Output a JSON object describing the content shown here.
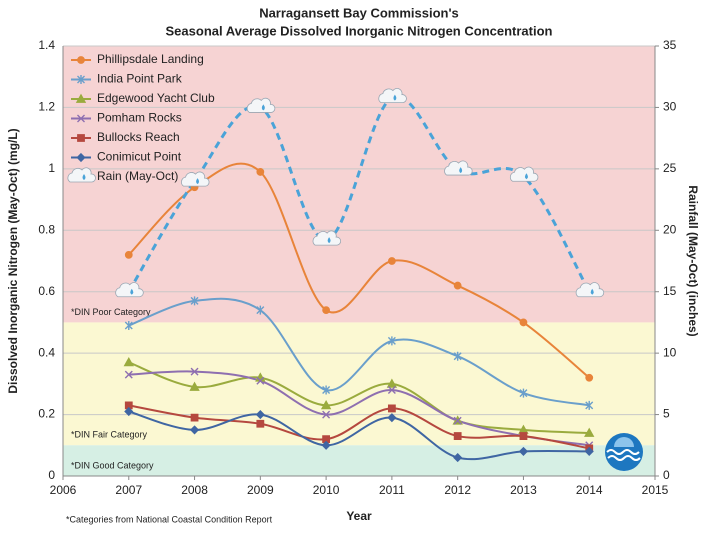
{
  "chart_data": {
    "type": "line",
    "title": "Narragansett Bay Commission's",
    "subtitle": "Seasonal Average Dissolved Inorganic Nitrogen Concentration",
    "x_label": "Year",
    "y_label": "Dissolved Inorganic Nitrogen (May-Oct) (mg/L)",
    "y2_label": "Rainfall (May-Oct) (inches)",
    "footnote": "*Categories from National Coastal Condition Report",
    "x": [
      2007,
      2008,
      2009,
      2010,
      2011,
      2012,
      2013,
      2014
    ],
    "xlim": [
      2006,
      2015
    ],
    "xticks": [
      2006,
      2007,
      2008,
      2009,
      2010,
      2011,
      2012,
      2013,
      2014,
      2015
    ],
    "ylim": [
      0,
      1.4
    ],
    "yticks": [
      0,
      0.2,
      0.4,
      0.6,
      0.8,
      1,
      1.2,
      1.4
    ],
    "y2lim": [
      0,
      35
    ],
    "y2ticks": [
      0,
      5,
      10,
      15,
      20,
      25,
      30,
      35
    ],
    "grid": true,
    "legend": "top-left",
    "smooth": true,
    "bands": [
      {
        "from": 0.5,
        "to": 1.4,
        "color": "#f6d3d3",
        "label": "*DIN Poor Category"
      },
      {
        "from": 0.1,
        "to": 0.5,
        "color": "#fbf8d2",
        "label": "*DIN Fair Category"
      },
      {
        "from": 0,
        "to": 0.1,
        "color": "#d6efe4",
        "label": "*DIN Good Category"
      }
    ],
    "series": [
      {
        "name": "Phillipsdale Landing",
        "color": "#e8843a",
        "marker": "circle",
        "values": [
          0.72,
          0.94,
          0.99,
          0.54,
          0.7,
          0.62,
          0.5,
          0.32
        ]
      },
      {
        "name": "India Point Park",
        "color": "#6a9fcb",
        "marker": "star",
        "values": [
          0.49,
          0.57,
          0.54,
          0.28,
          0.44,
          0.39,
          0.27,
          0.23
        ]
      },
      {
        "name": "Edgewood Yacht Club",
        "color": "#9aab3e",
        "marker": "triangle",
        "values": [
          0.37,
          0.29,
          0.32,
          0.23,
          0.3,
          0.18,
          0.15,
          0.14
        ]
      },
      {
        "name": "Pomham Rocks",
        "color": "#8e6fb0",
        "marker": "x",
        "values": [
          0.33,
          0.34,
          0.31,
          0.2,
          0.28,
          0.18,
          0.13,
          0.1
        ]
      },
      {
        "name": "Bullocks Reach",
        "color": "#b5483f",
        "marker": "square",
        "values": [
          0.23,
          0.19,
          0.17,
          0.12,
          0.22,
          0.13,
          0.13,
          0.09
        ]
      },
      {
        "name": "Conimicut Point",
        "color": "#3f66a3",
        "marker": "diamond",
        "values": [
          0.21,
          0.15,
          0.2,
          0.1,
          0.19,
          0.06,
          0.08,
          0.08
        ]
      },
      {
        "name": "Rain (May-Oct)",
        "color": "#4aa3d8",
        "marker": "cloud",
        "dashed": true,
        "axis": "y2",
        "values": [
          15,
          24,
          30,
          19.2,
          30.8,
          24.9,
          24.4,
          15
        ]
      }
    ]
  }
}
